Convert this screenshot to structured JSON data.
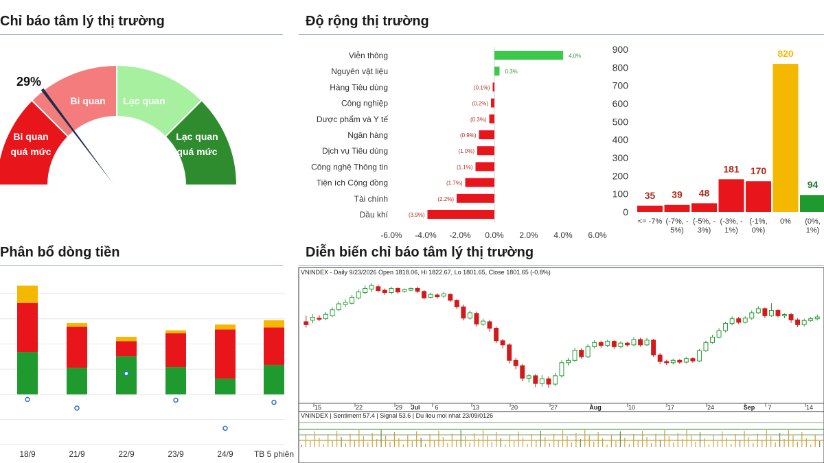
{
  "sections": {
    "gauge_title": "Chỉ báo tâm lý thị trường",
    "breadth_title": "Độ rộng thị trường",
    "flow_title": "Phân bổ dòng tiền",
    "history_title": "Diễn biến chỉ báo tâm lý thị trường"
  },
  "gauge": {
    "value_label": "29%",
    "value": 0.29,
    "zones": [
      {
        "label": "Bi quan quá mức",
        "color": "#e8151b"
      },
      {
        "label": "Bi quan",
        "color": "#f47c7c"
      },
      {
        "label": "Lạc quan",
        "color": "#a6f0a0"
      },
      {
        "label": "Lạc quan quá mức",
        "color": "#2e8b2e"
      }
    ]
  },
  "chart_data": [
    {
      "type": "bar",
      "orientation": "horizontal",
      "categories": [
        "Viễn thông",
        "Nguyên vật liệu",
        "Hàng Tiêu dùng",
        "Công nghiệp",
        "Dược phẩm và Y tế",
        "Ngân hàng",
        "Dịch vụ Tiêu dùng",
        "Công nghệ Thông tin",
        "Tiện ích Cộng đồng",
        "Tài chính",
        "Dầu khí"
      ],
      "values": [
        4.0,
        0.3,
        -0.1,
        -0.2,
        -0.3,
        -0.9,
        -1.0,
        -1.1,
        -1.7,
        -2.2,
        -3.9
      ],
      "labels": [
        "4.0%",
        "0.3%",
        "(0.1%)",
        "(0.2%)",
        "(0.3%)",
        "(0.9%)",
        "(1.0%)",
        "(1.1%)",
        "(1.7%)",
        "(2.2%)",
        "(3.9%)"
      ],
      "xlim": [
        -6.0,
        6.0
      ],
      "xticks": [
        "-6.0%",
        "-4.0%",
        "-2.0%",
        "0.0%",
        "2.0%",
        "4.0%",
        "6.0%"
      ],
      "colors": {
        "positive": "#3cc84a",
        "negative": "#e8151b"
      }
    },
    {
      "type": "bar",
      "categories": [
        "<= -7%",
        "(-7%, -5%)",
        "(-5%, -3%)",
        "(-3%, -1%)",
        "(-1%, 0%)",
        "0%",
        "(0%, 1%)"
      ],
      "category_lines": [
        [
          "<= -7%"
        ],
        [
          "(-7%, -",
          "5%)"
        ],
        [
          "(-5%, -",
          "3%)"
        ],
        [
          "(-3%, -",
          "1%)"
        ],
        [
          "(-1%,",
          "0%)"
        ],
        [
          "0%"
        ],
        [
          "(0%,",
          "1%)"
        ]
      ],
      "values": [
        35,
        39,
        48,
        181,
        170,
        820,
        94
      ],
      "value_labels": [
        "35",
        "39",
        "48",
        "181",
        "170",
        "820",
        "94"
      ],
      "bar_colors": [
        "#e8151b",
        "#e8151b",
        "#e8151b",
        "#e8151b",
        "#e8151b",
        "#f5b800",
        "#1f9a2e"
      ],
      "value_label_colors": [
        "#b22a1a",
        "#b22a1a",
        "#b22a1a",
        "#b22a1a",
        "#b22a1a",
        "#f5b800",
        "#1f7a2e"
      ],
      "ylim": [
        0,
        900
      ],
      "yticks": [
        "0",
        "100",
        "200",
        "300",
        "400",
        "500",
        "600",
        "700",
        "800",
        "900"
      ]
    },
    {
      "type": "bar",
      "stacked": true,
      "categories": [
        "18/9",
        "21/9",
        "22/9",
        "23/9",
        "24/9",
        "TB 5 phiên"
      ],
      "series": [
        {
          "values": [
            59,
            37,
            53,
            38,
            22,
            41
          ],
          "color": "#1f9a2e"
        },
        {
          "values": [
            68,
            57,
            21,
            47,
            68,
            52
          ],
          "color": "#e8151b"
        },
        {
          "values": [
            24,
            5,
            6,
            4,
            7,
            10
          ],
          "color": "#f5b800"
        }
      ],
      "markers": [
        -7,
        -19,
        29,
        -8,
        -47,
        -11
      ],
      "ylim": [
        -70,
        170
      ]
    },
    {
      "type": "candlestick",
      "header": "VNINDEX - Daily 9/23/2026 Open 1818.06, Hi 1822.67, Lo 1801.65, Close 1801.65 (-0.8%)",
      "xticks": [
        "15",
        "22",
        "29",
        "Jul",
        "6",
        "13",
        "20",
        "27",
        "Aug",
        "10",
        "17",
        "24",
        "Sep",
        "7",
        "14"
      ],
      "ylim": [
        1330,
        1750
      ],
      "candles": [
        [
          1600,
          1590,
          1620,
          1580
        ],
        [
          1605,
          1615,
          1625,
          1595
        ],
        [
          1612,
          1608,
          1622,
          1602
        ],
        [
          1610,
          1625,
          1632,
          1605
        ],
        [
          1620,
          1640,
          1648,
          1615
        ],
        [
          1640,
          1660,
          1668,
          1635
        ],
        [
          1658,
          1665,
          1675,
          1650
        ],
        [
          1662,
          1682,
          1690,
          1658
        ],
        [
          1680,
          1700,
          1708,
          1675
        ],
        [
          1698,
          1712,
          1722,
          1692
        ],
        [
          1710,
          1722,
          1730,
          1700
        ],
        [
          1718,
          1705,
          1725,
          1698
        ],
        [
          1706,
          1698,
          1712,
          1690
        ],
        [
          1698,
          1712,
          1718,
          1692
        ],
        [
          1712,
          1700,
          1716,
          1694
        ],
        [
          1702,
          1708,
          1712,
          1698
        ],
        [
          1706,
          1712,
          1716,
          1702
        ],
        [
          1712,
          1702,
          1718,
          1696
        ],
        [
          1702,
          1680,
          1706,
          1675
        ],
        [
          1682,
          1692,
          1698,
          1678
        ],
        [
          1690,
          1684,
          1696,
          1678
        ],
        [
          1686,
          1694,
          1700,
          1680
        ],
        [
          1692,
          1672,
          1696,
          1666
        ],
        [
          1672,
          1650,
          1676,
          1642
        ],
        [
          1650,
          1612,
          1658,
          1604
        ],
        [
          1612,
          1630,
          1638,
          1606
        ],
        [
          1628,
          1592,
          1634,
          1584
        ],
        [
          1592,
          1602,
          1610,
          1586
        ],
        [
          1600,
          1578,
          1606,
          1566
        ],
        [
          1578,
          1536,
          1584,
          1528
        ],
        [
          1536,
          1522,
          1542,
          1510
        ],
        [
          1522,
          1470,
          1528,
          1460
        ],
        [
          1470,
          1452,
          1478,
          1440
        ],
        [
          1452,
          1410,
          1458,
          1400
        ],
        [
          1410,
          1418,
          1424,
          1396
        ],
        [
          1418,
          1392,
          1424,
          1380
        ],
        [
          1392,
          1408,
          1420,
          1382
        ],
        [
          1408,
          1390,
          1416,
          1378
        ],
        [
          1390,
          1418,
          1428,
          1384
        ],
        [
          1418,
          1462,
          1470,
          1412
        ],
        [
          1462,
          1470,
          1478,
          1452
        ],
        [
          1470,
          1504,
          1512,
          1466
        ],
        [
          1504,
          1482,
          1510,
          1476
        ],
        [
          1482,
          1516,
          1524,
          1478
        ],
        [
          1516,
          1530,
          1538,
          1510
        ],
        [
          1530,
          1520,
          1536,
          1512
        ],
        [
          1520,
          1534,
          1540,
          1514
        ],
        [
          1534,
          1516,
          1538,
          1508
        ],
        [
          1516,
          1528,
          1534,
          1510
        ],
        [
          1528,
          1522,
          1532,
          1516
        ],
        [
          1522,
          1540,
          1548,
          1518
        ],
        [
          1540,
          1522,
          1546,
          1516
        ],
        [
          1522,
          1538,
          1546,
          1518
        ],
        [
          1538,
          1488,
          1542,
          1482
        ],
        [
          1488,
          1466,
          1494,
          1458
        ],
        [
          1466,
          1462,
          1472,
          1454
        ],
        [
          1462,
          1470,
          1476,
          1456
        ],
        [
          1470,
          1464,
          1474,
          1458
        ],
        [
          1464,
          1476,
          1482,
          1460
        ],
        [
          1476,
          1468,
          1480,
          1462
        ],
        [
          1468,
          1502,
          1508,
          1464
        ],
        [
          1502,
          1530,
          1536,
          1498
        ],
        [
          1530,
          1548,
          1556,
          1526
        ],
        [
          1548,
          1570,
          1578,
          1544
        ],
        [
          1570,
          1594,
          1600,
          1564
        ],
        [
          1594,
          1610,
          1618,
          1588
        ],
        [
          1610,
          1598,
          1616,
          1592
        ],
        [
          1598,
          1612,
          1618,
          1594
        ],
        [
          1612,
          1630,
          1638,
          1606
        ],
        [
          1630,
          1644,
          1652,
          1626
        ],
        [
          1644,
          1620,
          1648,
          1612
        ],
        [
          1620,
          1638,
          1662,
          1616
        ],
        [
          1638,
          1620,
          1642,
          1614
        ],
        [
          1620,
          1624,
          1628,
          1612
        ],
        [
          1624,
          1606,
          1630,
          1596
        ],
        [
          1606,
          1590,
          1612,
          1582
        ],
        [
          1590,
          1604,
          1610,
          1584
        ],
        [
          1604,
          1610,
          1616,
          1600
        ],
        [
          1610,
          1616,
          1624,
          1604
        ]
      ]
    },
    {
      "type": "bar",
      "header": "VNINDEX | Sentiment 57.4 | Signal 53.6 | Du lieu moi nhat 23/09/0126"
    }
  ]
}
